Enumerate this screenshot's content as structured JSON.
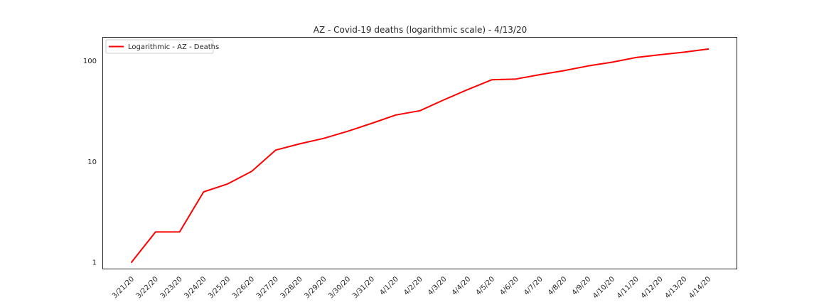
{
  "chart_data": {
    "type": "line",
    "title": "AZ - Covid-19 deaths (logarithmic scale) - 4/13/20",
    "xlabel": "",
    "ylabel": "",
    "y_scale": "log",
    "ylim": [
      0.85,
      170
    ],
    "y_ticks": [
      1,
      10,
      100
    ],
    "y_tick_labels": [
      "1",
      "10",
      "100"
    ],
    "x_tick_rotation_deg": 45,
    "grid": false,
    "legend_position": "top-left",
    "categories": [
      "3/21/20",
      "3/22/20",
      "3/23/20",
      "3/24/20",
      "3/25/20",
      "3/26/20",
      "3/27/20",
      "3/28/20",
      "3/29/20",
      "3/30/20",
      "3/31/20",
      "4/1/20",
      "4/2/20",
      "4/3/20",
      "4/4/20",
      "4/5/20",
      "4/6/20",
      "4/7/20",
      "4/8/20",
      "4/9/20",
      "4/10/20",
      "4/11/20",
      "4/12/20",
      "4/13/20",
      "4/14/20"
    ],
    "series": [
      {
        "name": "Logarithmic - AZ - Deaths",
        "color": "#ff0000",
        "values": [
          1,
          2,
          2,
          5,
          6,
          8,
          13,
          15,
          17,
          20,
          24,
          29,
          32,
          41,
          52,
          65,
          66,
          73,
          80,
          89,
          97,
          108,
          115,
          122,
          131
        ]
      }
    ]
  }
}
